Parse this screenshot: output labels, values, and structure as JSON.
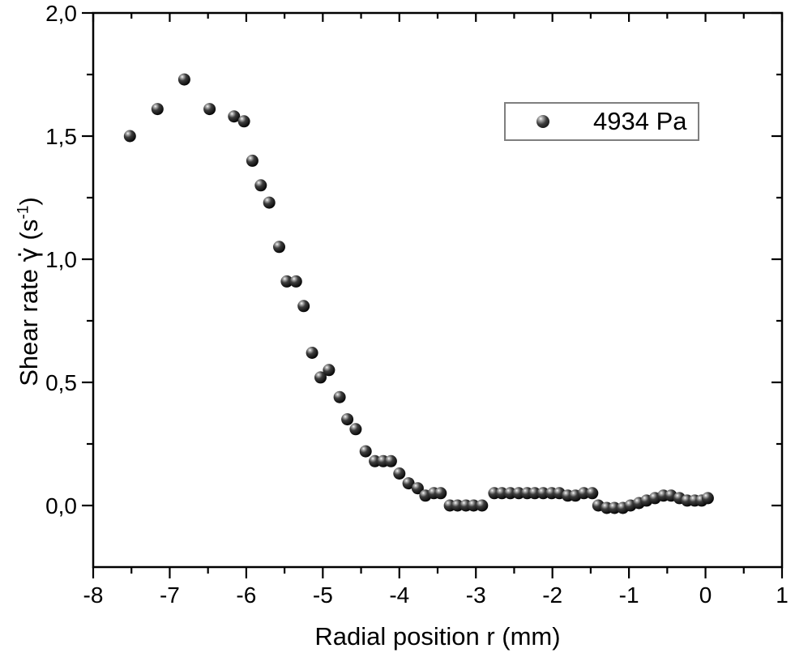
{
  "page": {
    "background": "#ffffff"
  },
  "colors": {
    "axis": "#000000",
    "tick_label": "#000000",
    "marker_core": "#000000",
    "marker_mid": "#3d3d3d",
    "marker_highlight": "#ffffff",
    "legend_border": "#7f7f7f"
  },
  "legend": {
    "label": "4934 Pa",
    "position": "top-right",
    "marker": "sphere-3d-black"
  },
  "chart_data": {
    "type": "scatter",
    "title": "",
    "grid": false,
    "marker_style": "3d-sphere-black",
    "legend_position": "top-right",
    "x_axis": {
      "title": "Radial position r (mm)",
      "min": -8,
      "max": 1,
      "major_ticks": [
        -8,
        -7,
        -6,
        -5,
        -4,
        -3,
        -2,
        -1,
        0,
        1
      ],
      "tick_labels": [
        "-8",
        "-7",
        "-6",
        "-5",
        "-4",
        "-3",
        "-2",
        "-1",
        "0",
        "1"
      ],
      "minor_step": 0.5
    },
    "y_axis": {
      "title": "Shear rate γ̇ (s⁻¹)",
      "title_parts": {
        "pre": "Shear rate ",
        "symbol": "γ̇",
        "open": " (s",
        "sup": "-1",
        "close": ")"
      },
      "min": -0.25,
      "max": 2.0,
      "major_ticks": [
        0.0,
        0.5,
        1.0,
        1.5,
        2.0
      ],
      "tick_labels": [
        "0,0",
        "0,5",
        "1,0",
        "1,5",
        "2,0"
      ],
      "minor_step": 0.25,
      "decimal_separator": ","
    },
    "series": [
      {
        "name": "4934 Pa",
        "points": [
          [
            -7.52,
            1.5
          ],
          [
            -7.16,
            1.61
          ],
          [
            -6.81,
            1.73
          ],
          [
            -6.48,
            1.61
          ],
          [
            -6.16,
            1.58
          ],
          [
            -6.03,
            1.56
          ],
          [
            -5.92,
            1.4
          ],
          [
            -5.81,
            1.3
          ],
          [
            -5.7,
            1.23
          ],
          [
            -5.57,
            1.05
          ],
          [
            -5.47,
            0.91
          ],
          [
            -5.35,
            0.91
          ],
          [
            -5.25,
            0.81
          ],
          [
            -5.14,
            0.62
          ],
          [
            -5.03,
            0.52
          ],
          [
            -4.92,
            0.55
          ],
          [
            -4.78,
            0.44
          ],
          [
            -4.68,
            0.35
          ],
          [
            -4.57,
            0.31
          ],
          [
            -4.44,
            0.22
          ],
          [
            -4.32,
            0.18
          ],
          [
            -4.21,
            0.18
          ],
          [
            -4.11,
            0.18
          ],
          [
            -4.0,
            0.13
          ],
          [
            -3.88,
            0.09
          ],
          [
            -3.76,
            0.07
          ],
          [
            -3.66,
            0.04
          ],
          [
            -3.55,
            0.05
          ],
          [
            -3.46,
            0.05
          ],
          [
            -3.34,
            0.0
          ],
          [
            -3.24,
            0.0
          ],
          [
            -3.13,
            0.0
          ],
          [
            -3.03,
            0.0
          ],
          [
            -2.92,
            0.0
          ],
          [
            -2.76,
            0.05
          ],
          [
            -2.66,
            0.05
          ],
          [
            -2.55,
            0.05
          ],
          [
            -2.44,
            0.05
          ],
          [
            -2.33,
            0.05
          ],
          [
            -2.23,
            0.05
          ],
          [
            -2.12,
            0.05
          ],
          [
            -2.01,
            0.05
          ],
          [
            -1.91,
            0.05
          ],
          [
            -1.8,
            0.04
          ],
          [
            -1.7,
            0.04
          ],
          [
            -1.59,
            0.05
          ],
          [
            -1.48,
            0.05
          ],
          [
            -1.4,
            0.0
          ],
          [
            -1.29,
            -0.01
          ],
          [
            -1.19,
            -0.01
          ],
          [
            -1.08,
            -0.01
          ],
          [
            -0.98,
            0.0
          ],
          [
            -0.87,
            0.01
          ],
          [
            -0.77,
            0.02
          ],
          [
            -0.66,
            0.03
          ],
          [
            -0.55,
            0.04
          ],
          [
            -0.45,
            0.04
          ],
          [
            -0.34,
            0.03
          ],
          [
            -0.24,
            0.02
          ],
          [
            -0.14,
            0.02
          ],
          [
            -0.05,
            0.02
          ],
          [
            0.03,
            0.03
          ]
        ]
      }
    ]
  }
}
